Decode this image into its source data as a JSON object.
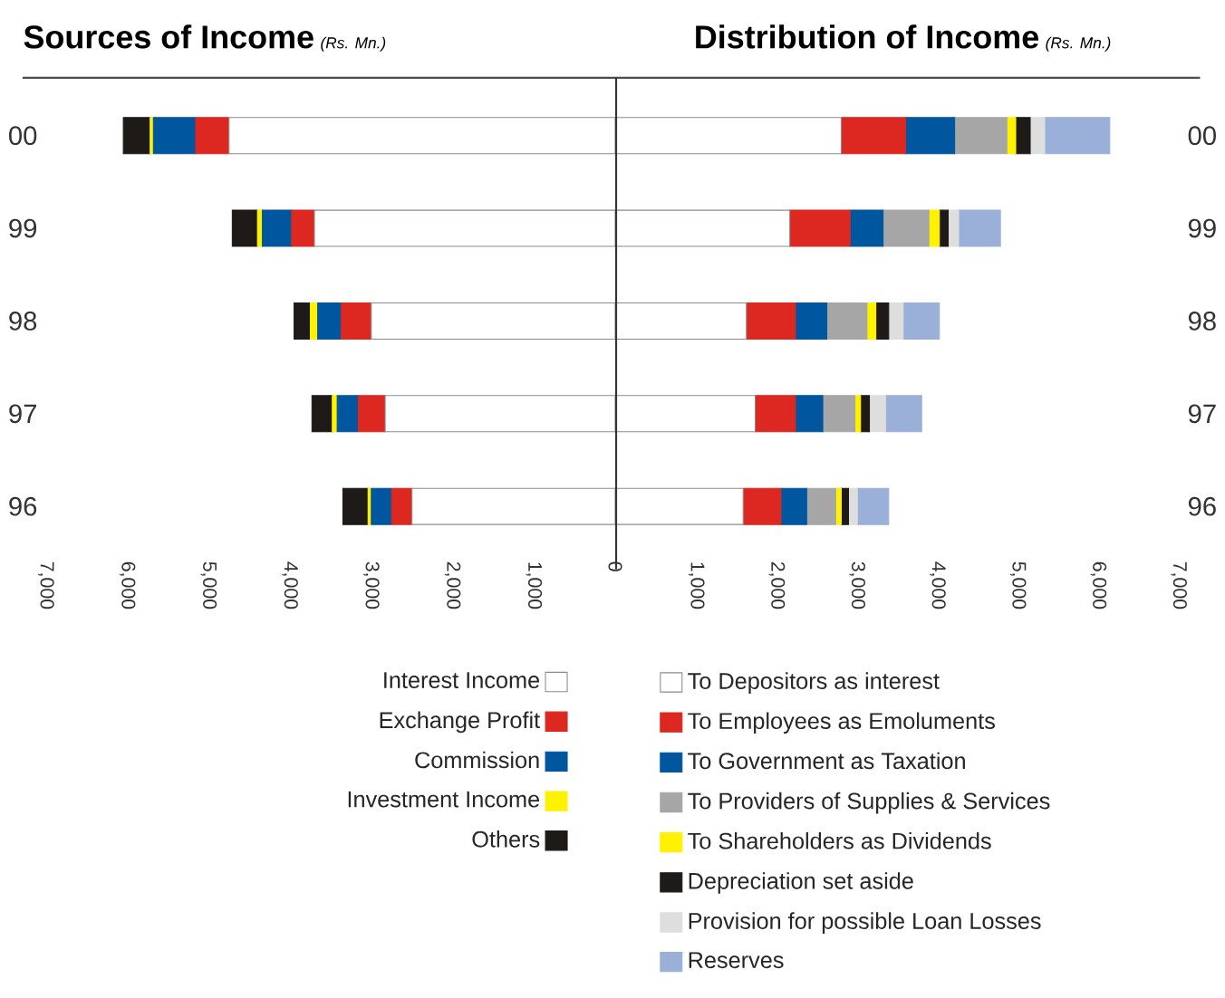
{
  "chart_data": [
    {
      "type": "bar",
      "orientation": "horizontal",
      "stacked": true,
      "title": "Sources of Income",
      "subtitle": "(Rs. Mn.)",
      "categories": [
        "00",
        "99",
        "98",
        "97",
        "96"
      ],
      "xlim": [
        7000,
        0
      ],
      "xticks": [
        {
          "value": 7000,
          "label": "7,000"
        },
        {
          "value": 6000,
          "label": "6,000"
        },
        {
          "value": 5000,
          "label": "5,000"
        },
        {
          "value": 4000,
          "label": "4,000"
        },
        {
          "value": 3000,
          "label": "3,000"
        },
        {
          "value": 2000,
          "label": "2,000"
        },
        {
          "value": 1000,
          "label": "1,000"
        },
        0
      ],
      "legend": "bottom",
      "series": [
        {
          "name": "Interest Income",
          "color": "#ffffff",
          "values": [
            4750,
            3700,
            3000,
            2830,
            2500
          ]
        },
        {
          "name": "Exchange Profit",
          "color": "#dc2820",
          "values": [
            410,
            280,
            370,
            330,
            250
          ]
        },
        {
          "name": "Commission",
          "color": "#0057a0",
          "values": [
            520,
            360,
            290,
            260,
            250
          ]
        },
        {
          "name": "Investment Income",
          "color": "#fff200",
          "values": [
            40,
            60,
            90,
            60,
            40
          ]
        },
        {
          "name": "Others",
          "color": "#1e1a18",
          "values": [
            330,
            310,
            200,
            250,
            310
          ]
        }
      ]
    },
    {
      "type": "bar",
      "orientation": "horizontal",
      "stacked": true,
      "title": "Distribution of Income",
      "subtitle": "(Rs. Mn.)",
      "categories": [
        "00",
        "99",
        "98",
        "97",
        "96"
      ],
      "xlim": [
        0,
        7000
      ],
      "xticks": [
        {
          "value": 0,
          "label": null
        },
        {
          "value": 1000,
          "label": "1,000"
        },
        {
          "value": 2000,
          "label": "2,000"
        },
        {
          "value": 3000,
          "label": "3,000"
        },
        {
          "value": 4000,
          "label": "4,000"
        },
        {
          "value": 5000,
          "label": "5,000"
        },
        {
          "value": 6000,
          "label": "6,000"
        },
        {
          "value": 7000,
          "label": "7,000"
        }
      ],
      "legend": "bottom",
      "series": [
        {
          "name": "To Depositors as interest",
          "color": "#ffffff",
          "values": [
            2800,
            2160,
            1620,
            1730,
            1580
          ]
        },
        {
          "name": "To Employees as Emoluments",
          "color": "#dc2820",
          "values": [
            800,
            750,
            610,
            500,
            470
          ]
        },
        {
          "name": "To Government as Taxation",
          "color": "#0057a0",
          "values": [
            610,
            410,
            390,
            340,
            320
          ]
        },
        {
          "name": "To Providers of Supplies & Services",
          "color": "#a6a6a6",
          "values": [
            650,
            570,
            500,
            400,
            360
          ]
        },
        {
          "name": "To Shareholders as Dividends",
          "color": "#fff200",
          "values": [
            110,
            130,
            110,
            70,
            70
          ]
        },
        {
          "name": "Depreciation set aside",
          "color": "#1e1a18",
          "values": [
            180,
            110,
            160,
            110,
            90
          ]
        },
        {
          "name": "Provision for possible Loan Losses",
          "color": "#dedede",
          "values": [
            180,
            130,
            180,
            200,
            110
          ]
        },
        {
          "name": "Reserves",
          "color": "#9bb0d8",
          "values": [
            810,
            520,
            450,
            450,
            390
          ]
        }
      ]
    }
  ]
}
